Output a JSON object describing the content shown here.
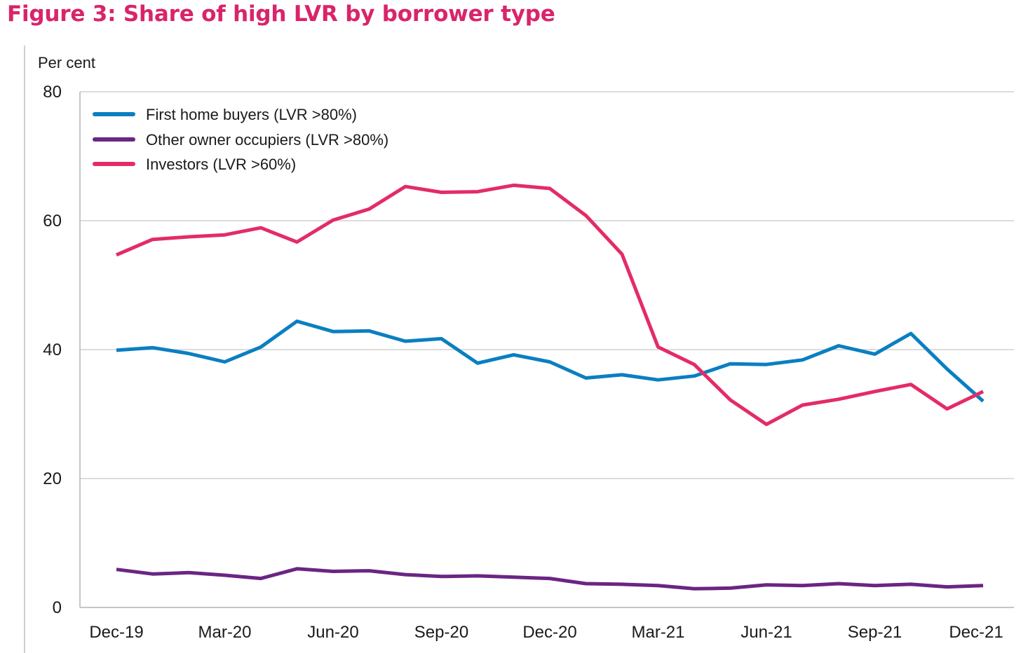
{
  "figure_title": "Figure 3:  Share of high LVR by borrower type",
  "chart_data": {
    "type": "line",
    "title": "Share of high LVR by borrower type",
    "ylabel": "Per cent",
    "xlabel": "",
    "ylim": [
      0,
      80
    ],
    "yticks": [
      0,
      20,
      40,
      60,
      80
    ],
    "ytick_labels": [
      "0",
      "20",
      "40",
      "60",
      "80"
    ],
    "grid": true,
    "legend_position": "top-left",
    "x_tick_labels": [
      "Dec-19",
      "Mar-20",
      "Jun-20",
      "Sep-20",
      "Dec-20",
      "Mar-21",
      "Jun-21",
      "Sep-21",
      "Dec-21"
    ],
    "x_tick_index": [
      0,
      3,
      6,
      9,
      12,
      15,
      18,
      21,
      24
    ],
    "series": [
      {
        "name": "First home buyers (LVR >80%)",
        "color": "#0a7fc1",
        "values": [
          39.9,
          40.3,
          39.4,
          38.1,
          40.4,
          44.4,
          42.8,
          42.9,
          41.3,
          41.7,
          37.9,
          39.2,
          38.1,
          35.6,
          36.1,
          35.3,
          35.9,
          37.8,
          37.7,
          38.4,
          40.6,
          39.3,
          42.5,
          37.0,
          32.0
        ]
      },
      {
        "name": "Other owner occupiers (LVR >80%)",
        "color": "#6b2583",
        "values": [
          5.9,
          5.2,
          5.4,
          5.0,
          4.5,
          6.0,
          5.6,
          5.7,
          5.1,
          4.8,
          4.9,
          4.7,
          4.5,
          3.7,
          3.6,
          3.4,
          2.9,
          3.0,
          3.5,
          3.4,
          3.7,
          3.4,
          3.6,
          3.2,
          3.4
        ]
      },
      {
        "name": "Investors (LVR >60%)",
        "color": "#e32c66",
        "values": [
          54.7,
          57.1,
          57.5,
          57.8,
          58.9,
          56.7,
          60.1,
          61.8,
          65.3,
          64.4,
          64.5,
          65.5,
          65.0,
          60.8,
          54.8,
          40.4,
          37.7,
          32.2,
          28.4,
          31.4,
          32.3,
          33.5,
          34.6,
          30.8,
          33.5
        ]
      }
    ]
  }
}
